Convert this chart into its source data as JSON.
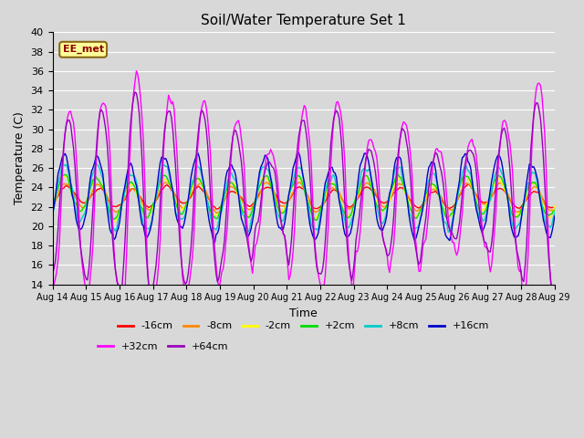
{
  "title": "Soil/Water Temperature Set 1",
  "xlabel": "Time",
  "ylabel": "Temperature (C)",
  "ylim": [
    14,
    40
  ],
  "yticks": [
    14,
    16,
    18,
    20,
    22,
    24,
    26,
    28,
    30,
    32,
    34,
    36,
    38,
    40
  ],
  "x_tick_labels": [
    "Aug 14",
    "Aug 15",
    "Aug 16",
    "Aug 17",
    "Aug 18",
    "Aug 19",
    "Aug 20",
    "Aug 21",
    "Aug 22",
    "Aug 23",
    "Aug 24",
    "Aug 25",
    "Aug 26",
    "Aug 27",
    "Aug 28",
    "Aug 29"
  ],
  "bg_color": "#d8d8d8",
  "plot_bg": "#d8d8d8",
  "grid_color": "#ffffff",
  "annotation_text": "EE_met",
  "annotation_bg": "#ffff99",
  "annotation_border": "#8b6914",
  "series": [
    {
      "label": "-16cm",
      "color": "#ff0000"
    },
    {
      "label": "-8cm",
      "color": "#ff8800"
    },
    {
      "label": "-2cm",
      "color": "#ffff00"
    },
    {
      "label": "+2cm",
      "color": "#00dd00"
    },
    {
      "label": "+8cm",
      "color": "#00cccc"
    },
    {
      "label": "+16cm",
      "color": "#0000cc"
    },
    {
      "label": "+32cm",
      "color": "#ff00ff"
    },
    {
      "label": "+64cm",
      "color": "#9900bb"
    }
  ]
}
